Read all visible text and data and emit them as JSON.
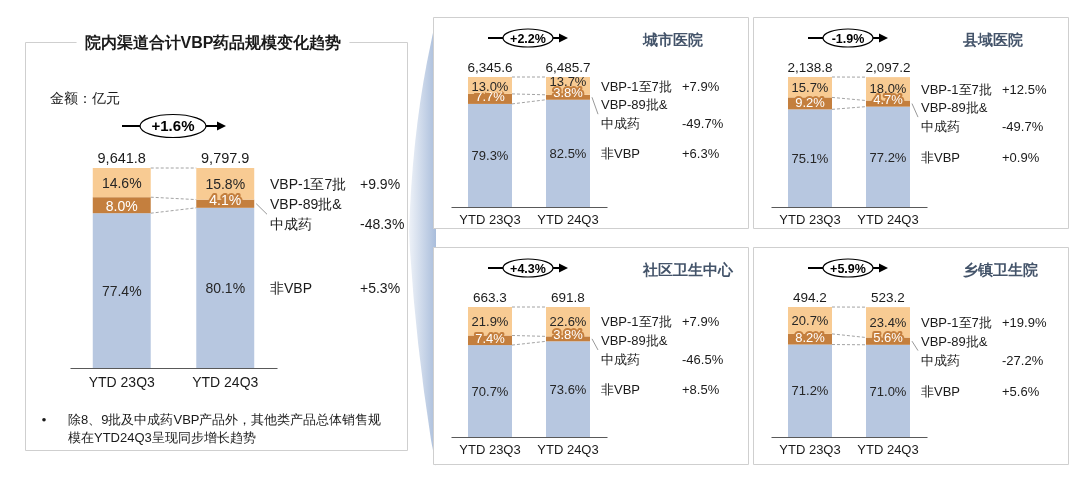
{
  "chart_data": [
    {
      "type": "bar",
      "stacked": true,
      "title": "院内渠道合计VBP药品规模变化趋势",
      "subtitle": "金额：亿元",
      "categories": [
        "YTD 23Q3",
        "YTD 24Q3"
      ],
      "series": [
        {
          "name": "非VBP",
          "color": "#b7c7e0",
          "values": [
            77.4,
            80.1
          ],
          "value_labels": [
            "77.4%",
            "80.1%"
          ]
        },
        {
          "name": "VBP-89批&中成药",
          "color": "#c47f3e",
          "values": [
            8.0,
            4.1
          ],
          "value_labels": [
            "8.0%",
            "4.1%"
          ]
        },
        {
          "name": "VBP-1至7批",
          "color": "#f8cb93",
          "values": [
            14.6,
            15.8
          ],
          "value_labels": [
            "14.6%",
            "15.8%"
          ]
        }
      ],
      "annotations": [
        "+1.6%",
        "+5.3%",
        "-48.3%",
        "+9.9%",
        "除8、9批及中成药VBP产品外，其他类产品总体销售规模在YTD24Q3呈现同步增长趋势",
        {
          "text": "9,641.8",
          "x": "YTD 23Q3",
          "y": 100
        },
        {
          "text": "9,797.9",
          "x": "YTD 24Q3",
          "y": 100
        }
      ]
    },
    {
      "type": "bar",
      "stacked": true,
      "categories": [
        "YTD 23Q3",
        "YTD 24Q3"
      ],
      "series": [
        {
          "name": "非VBP",
          "color": "#b7c7e0",
          "values": [
            79.3,
            82.5
          ],
          "value_labels": [
            "79.3%",
            "82.5%"
          ]
        },
        {
          "name": "VBP-89批&中成药",
          "color": "#c47f3e",
          "values": [
            7.7,
            3.8
          ],
          "value_labels": [
            "7.7%",
            "3.8%"
          ]
        },
        {
          "name": "VBP-1至7批",
          "color": "#f8cb93",
          "values": [
            13.0,
            13.7
          ],
          "value_labels": [
            "13.0%",
            "13.7%"
          ]
        }
      ],
      "annotations": [
        "+2.2%",
        "+6.3%",
        "-49.7%",
        "+7.9%",
        "城市医院",
        {
          "text": "6,345.6",
          "x": "YTD 23Q3",
          "y": 100
        },
        {
          "text": "6,485.7",
          "x": "YTD 24Q3",
          "y": 100
        }
      ]
    },
    {
      "type": "bar",
      "stacked": true,
      "categories": [
        "YTD 23Q3",
        "YTD 24Q3"
      ],
      "series": [
        {
          "name": "非VBP",
          "color": "#b7c7e0",
          "values": [
            75.1,
            77.2
          ],
          "value_labels": [
            "75.1%",
            "77.2%"
          ]
        },
        {
          "name": "VBP-89批&中成药",
          "color": "#c47f3e",
          "values": [
            9.2,
            4.7
          ],
          "value_labels": [
            "9.2%",
            "4.7%"
          ]
        },
        {
          "name": "VBP-1至7批",
          "color": "#f8cb93",
          "values": [
            15.7,
            18.0
          ],
          "value_labels": [
            "15.7%",
            "18.0%"
          ]
        }
      ],
      "annotations": [
        "-1.9%",
        "+0.9%",
        "-49.7%",
        "+12.5%",
        "县域医院",
        {
          "text": "2,138.8",
          "x": "YTD 23Q3",
          "y": 100
        },
        {
          "text": "2,097.2",
          "x": "YTD 24Q3",
          "y": 99.9
        }
      ]
    },
    {
      "type": "bar",
      "stacked": true,
      "categories": [
        "YTD 23Q3",
        "YTD 24Q3"
      ],
      "series": [
        {
          "name": "非VBP",
          "color": "#b7c7e0",
          "values": [
            70.7,
            73.6
          ],
          "value_labels": [
            "70.7%",
            "73.6%"
          ]
        },
        {
          "name": "VBP-89批&中成药",
          "color": "#c47f3e",
          "values": [
            7.4,
            3.8
          ],
          "value_labels": [
            "7.4%",
            "3.8%"
          ]
        },
        {
          "name": "VBP-1至7批",
          "color": "#f8cb93",
          "values": [
            21.9,
            22.6
          ],
          "value_labels": [
            "21.9%",
            "22.6%"
          ]
        }
      ],
      "annotations": [
        "+4.3%",
        "+8.5%",
        "-46.5%",
        "+7.9%",
        "社区卫生中心",
        {
          "text": "663.3",
          "x": "YTD 23Q3",
          "y": 100
        },
        {
          "text": "691.8",
          "x": "YTD 24Q3",
          "y": 100
        }
      ]
    },
    {
      "type": "bar",
      "stacked": true,
      "categories": [
        "YTD 23Q3",
        "YTD 24Q3"
      ],
      "series": [
        {
          "name": "非VBP",
          "color": "#b7c7e0",
          "values": [
            71.2,
            71.0
          ],
          "value_labels": [
            "71.2%",
            "71.0%"
          ]
        },
        {
          "name": "VBP-89批&中成药",
          "color": "#c47f3e",
          "values": [
            8.2,
            5.6
          ],
          "value_labels": [
            "8.2%",
            "5.6%"
          ]
        },
        {
          "name": "VBP-1至7批",
          "color": "#f8cb93",
          "values": [
            20.7,
            23.4
          ],
          "value_labels": [
            "20.7%",
            "23.4%"
          ]
        }
      ],
      "annotations": [
        "+5.9%",
        "+5.6%",
        "-27.2%",
        "+19.9%",
        "乡镇卫生院",
        {
          "text": "494.2",
          "x": "YTD 23Q3",
          "y": 100.1
        },
        {
          "text": "523.2",
          "x": "YTD 24Q3",
          "y": 100
        }
      ]
    }
  ]
}
